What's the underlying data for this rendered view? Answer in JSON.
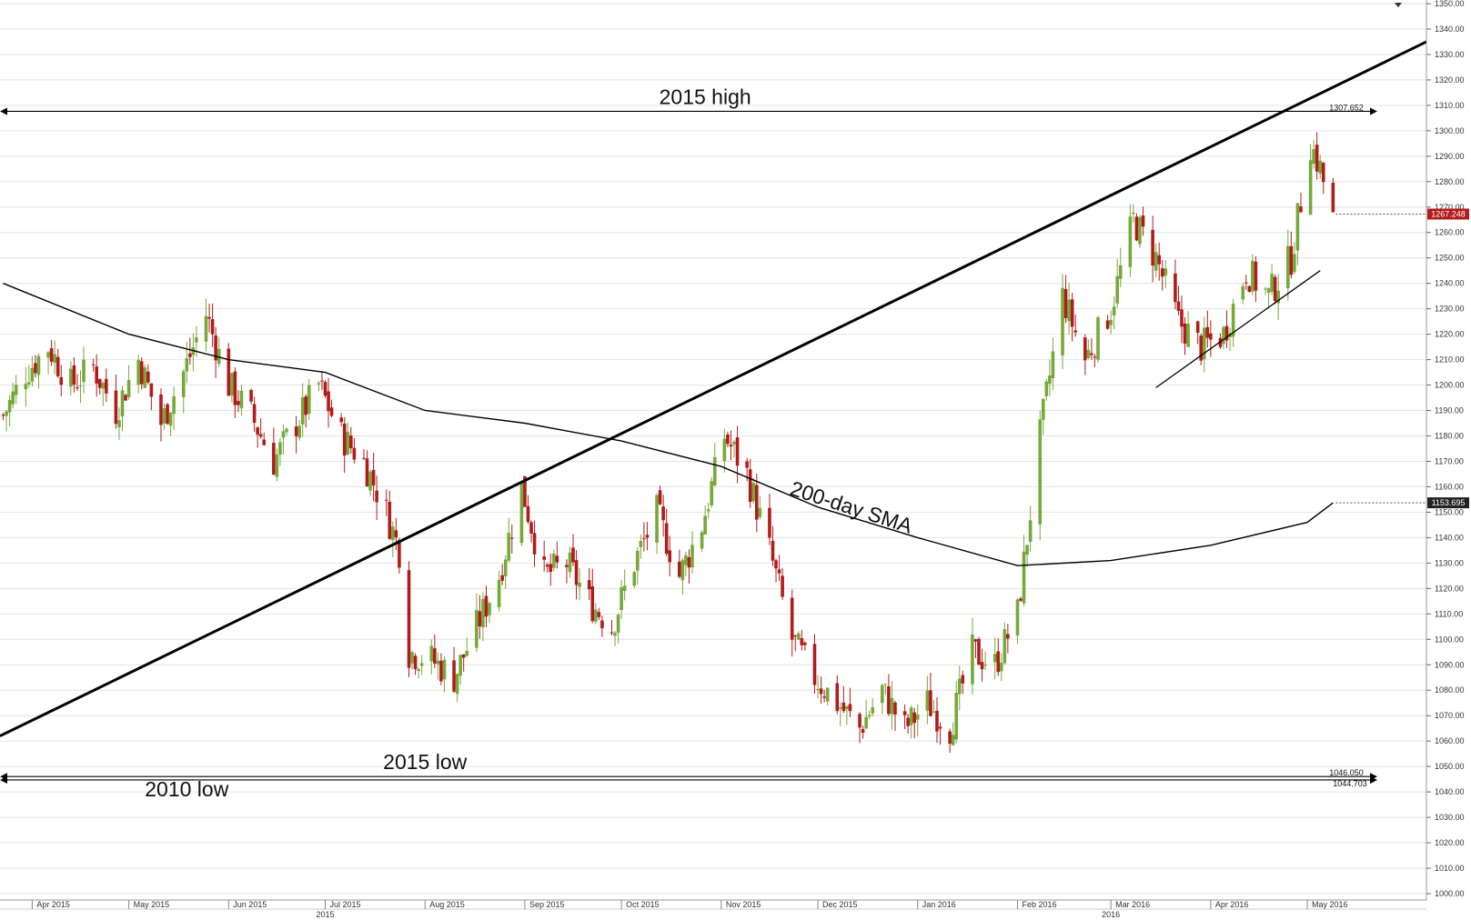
{
  "chart_data": {
    "type": "candlestick",
    "instrument_note": "",
    "y_axis": {
      "min": 1000,
      "max": 1350,
      "step": 10,
      "tick_labels": [
        "1000.00",
        "1010.00",
        "1020.00",
        "1030.00",
        "1040.00",
        "1050.00",
        "1060.00",
        "1070.00",
        "1080.00",
        "1090.00",
        "1100.00",
        "1110.00",
        "1120.00",
        "1130.00",
        "1140.00",
        "1150.00",
        "1160.00",
        "1170.00",
        "1180.00",
        "1190.00",
        "1200.00",
        "1210.00",
        "1220.00",
        "1230.00",
        "1240.00",
        "1250.00",
        "1260.00",
        "1270.00",
        "1280.00",
        "1290.00",
        "1300.00",
        "1310.00",
        "1320.00",
        "1330.00",
        "1340.00",
        "1350.00"
      ],
      "position": "right"
    },
    "x_axis": {
      "months": [
        {
          "label": "Apr 2015",
          "date": "2015-04-01"
        },
        {
          "label": "May 2015",
          "date": "2015-05-01"
        },
        {
          "label": "Jun 2015",
          "date": "2015-06-01"
        },
        {
          "label": "Jul 2015",
          "date": "2015-07-01"
        },
        {
          "label": "Aug 2015",
          "date": "2015-08-01"
        },
        {
          "label": "Sep 2015",
          "date": "2015-09-01"
        },
        {
          "label": "Oct 2015",
          "date": "2015-10-01"
        },
        {
          "label": "Nov 2015",
          "date": "2015-11-01"
        },
        {
          "label": "Dec 2015",
          "date": "2015-12-01"
        },
        {
          "label": "Jan 2016",
          "date": "2016-01-01"
        },
        {
          "label": "Feb 2016",
          "date": "2016-02-01"
        },
        {
          "label": "Mar 2016",
          "date": "2016-03-01"
        },
        {
          "label": "Apr 2016",
          "date": "2016-04-01"
        },
        {
          "label": "May 2016",
          "date": "2016-05-01"
        }
      ],
      "years": [
        {
          "label": "2015",
          "date": "2015-07-01"
        },
        {
          "label": "2016",
          "date": "2016-03-01"
        }
      ],
      "range": [
        "2015-03-22",
        "2016-06-07"
      ]
    },
    "price_keypoints": [
      {
        "date": "2015-03-23",
        "value": 1188
      },
      {
        "date": "2015-03-30",
        "value": 1205
      },
      {
        "date": "2015-04-06",
        "value": 1215
      },
      {
        "date": "2015-04-13",
        "value": 1200
      },
      {
        "date": "2015-04-20",
        "value": 1207
      },
      {
        "date": "2015-04-27",
        "value": 1190
      },
      {
        "date": "2015-05-04",
        "value": 1210
      },
      {
        "date": "2015-05-11",
        "value": 1185
      },
      {
        "date": "2015-05-18",
        "value": 1205
      },
      {
        "date": "2015-05-25",
        "value": 1228
      },
      {
        "date": "2015-06-01",
        "value": 1200
      },
      {
        "date": "2015-06-08",
        "value": 1188
      },
      {
        "date": "2015-06-15",
        "value": 1170
      },
      {
        "date": "2015-06-22",
        "value": 1185
      },
      {
        "date": "2015-06-29",
        "value": 1200
      },
      {
        "date": "2015-07-06",
        "value": 1180
      },
      {
        "date": "2015-07-13",
        "value": 1170
      },
      {
        "date": "2015-07-20",
        "value": 1150
      },
      {
        "date": "2015-07-24",
        "value": 1135
      },
      {
        "date": "2015-07-27",
        "value": 1095
      },
      {
        "date": "2015-08-03",
        "value": 1092
      },
      {
        "date": "2015-08-10",
        "value": 1085
      },
      {
        "date": "2015-08-17",
        "value": 1105
      },
      {
        "date": "2015-08-24",
        "value": 1125
      },
      {
        "date": "2015-08-31",
        "value": 1160
      },
      {
        "date": "2015-09-07",
        "value": 1125
      },
      {
        "date": "2015-09-14",
        "value": 1130
      },
      {
        "date": "2015-09-21",
        "value": 1115
      },
      {
        "date": "2015-09-28",
        "value": 1105
      },
      {
        "date": "2015-10-05",
        "value": 1130
      },
      {
        "date": "2015-10-12",
        "value": 1150
      },
      {
        "date": "2015-10-19",
        "value": 1125
      },
      {
        "date": "2015-10-26",
        "value": 1145
      },
      {
        "date": "2015-11-02",
        "value": 1180
      },
      {
        "date": "2015-11-09",
        "value": 1165
      },
      {
        "date": "2015-11-16",
        "value": 1135
      },
      {
        "date": "2015-11-23",
        "value": 1100
      },
      {
        "date": "2015-11-30",
        "value": 1085
      },
      {
        "date": "2015-12-07",
        "value": 1075
      },
      {
        "date": "2015-12-14",
        "value": 1065
      },
      {
        "date": "2015-12-21",
        "value": 1080
      },
      {
        "date": "2015-12-28",
        "value": 1065
      },
      {
        "date": "2016-01-04",
        "value": 1075
      },
      {
        "date": "2016-01-11",
        "value": 1065
      },
      {
        "date": "2016-01-18",
        "value": 1095
      },
      {
        "date": "2016-01-25",
        "value": 1090
      },
      {
        "date": "2016-02-01",
        "value": 1110
      },
      {
        "date": "2016-02-08",
        "value": 1180
      },
      {
        "date": "2016-02-15",
        "value": 1235
      },
      {
        "date": "2016-02-22",
        "value": 1210
      },
      {
        "date": "2016-03-01",
        "value": 1230
      },
      {
        "date": "2016-03-08",
        "value": 1265
      },
      {
        "date": "2016-03-15",
        "value": 1250
      },
      {
        "date": "2016-03-22",
        "value": 1225
      },
      {
        "date": "2016-03-29",
        "value": 1215
      },
      {
        "date": "2016-04-05",
        "value": 1220
      },
      {
        "date": "2016-04-12",
        "value": 1245
      },
      {
        "date": "2016-04-19",
        "value": 1235
      },
      {
        "date": "2016-04-26",
        "value": 1250
      },
      {
        "date": "2016-05-02",
        "value": 1295
      },
      {
        "date": "2016-05-05",
        "value": 1285
      },
      {
        "date": "2016-05-09",
        "value": 1265
      }
    ],
    "sma200": {
      "label": "200-day SMA",
      "points": [
        {
          "date": "2015-03-23",
          "value": 1240
        },
        {
          "date": "2015-05-01",
          "value": 1220
        },
        {
          "date": "2015-06-01",
          "value": 1210
        },
        {
          "date": "2015-07-01",
          "value": 1205
        },
        {
          "date": "2015-08-01",
          "value": 1190
        },
        {
          "date": "2015-09-01",
          "value": 1185
        },
        {
          "date": "2015-10-01",
          "value": 1178
        },
        {
          "date": "2015-11-01",
          "value": 1168
        },
        {
          "date": "2015-12-01",
          "value": 1152
        },
        {
          "date": "2016-01-01",
          "value": 1140
        },
        {
          "date": "2016-02-01",
          "value": 1129
        },
        {
          "date": "2016-03-01",
          "value": 1131
        },
        {
          "date": "2016-04-01",
          "value": 1137
        },
        {
          "date": "2016-05-01",
          "value": 1146
        },
        {
          "date": "2016-05-09",
          "value": 1153.695
        }
      ]
    },
    "horizontal_lines": [
      {
        "label": "2015 high",
        "value": 1307.652,
        "tag": "1307.652"
      },
      {
        "label": "2015 low",
        "value": 1046.05,
        "tag": "1046.050"
      },
      {
        "label": "2010 low",
        "value": 1044.703,
        "tag": "1044.703"
      }
    ],
    "trendlines": [
      {
        "name": "long-term-uptrend",
        "from": {
          "date": "2015-03-22",
          "value": 1062
        },
        "to": {
          "date": "2016-06-07",
          "value": 1335
        }
      },
      {
        "name": "short-term-support",
        "from": {
          "date": "2016-03-15",
          "value": 1199
        },
        "to": {
          "date": "2016-05-05",
          "value": 1245
        }
      }
    ],
    "current_price": {
      "value": 1267.248,
      "tag": "1267.248"
    },
    "sma_current": {
      "value": 1153.695,
      "tag": "1153.695"
    }
  },
  "colors": {
    "up": "#76a83a",
    "down": "#b01c1c",
    "line": "#000000",
    "grid": "#e4e4e4",
    "price_tag": "#b01c1c",
    "sma_tag": "#222222"
  }
}
